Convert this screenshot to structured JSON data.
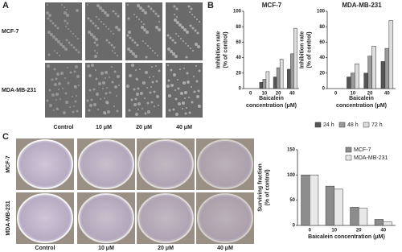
{
  "panel_labels": [
    "A",
    "B",
    "C"
  ],
  "panel_a": {
    "rows": [
      "MCF-7",
      "MDA-MB-231"
    ],
    "columns": [
      "Control",
      "10 μM",
      "20 μM",
      "40 μM"
    ]
  },
  "panel_c": {
    "rows": [
      "MCF-7",
      "MDA-MB-231"
    ],
    "columns": [
      "Control",
      "10 μM",
      "20 μM",
      "40 μM"
    ]
  },
  "chart_data": [
    {
      "type": "bar",
      "title": "MCF-7",
      "ylabel": [
        "Inhibition rate",
        "(% of control)"
      ],
      "xlabel": [
        "Baicalein",
        "concentration (μM)"
      ],
      "categories": [
        "0",
        "10",
        "20",
        "40"
      ],
      "ylim": [
        0,
        100
      ],
      "yticks": [
        0,
        20,
        40,
        60,
        80,
        100
      ],
      "series": [
        {
          "name": "24 h",
          "color": "#555555",
          "values": [
            0,
            8,
            15,
            25
          ]
        },
        {
          "name": "48 h",
          "color": "#9a9a9a",
          "values": [
            0,
            12,
            27,
            45
          ]
        },
        {
          "name": "72 h",
          "color": "#dddddd",
          "values": [
            0,
            22,
            38,
            78
          ]
        }
      ]
    },
    {
      "type": "bar",
      "title": "MDA-MB-231",
      "ylabel": [
        "Inhibition rate",
        "(% of control)"
      ],
      "xlabel": [
        "Baicalein",
        "concentration (μM)"
      ],
      "categories": [
        "0",
        "10",
        "20",
        "40"
      ],
      "ylim": [
        0,
        100
      ],
      "yticks": [
        0,
        20,
        40,
        60,
        80,
        100
      ],
      "series": [
        {
          "name": "24 h",
          "color": "#555555",
          "values": [
            0,
            15,
            20,
            35
          ]
        },
        {
          "name": "48 h",
          "color": "#9a9a9a",
          "values": [
            0,
            20,
            42,
            52
          ]
        },
        {
          "name": "72 h",
          "color": "#dddddd",
          "values": [
            0,
            32,
            55,
            88
          ]
        }
      ]
    },
    {
      "type": "bar",
      "ylabel": [
        "Surviving fraction",
        "(% of control)"
      ],
      "xlabel": [
        "Baicalein concentration (μM)"
      ],
      "categories": [
        "0",
        "10",
        "20",
        "40"
      ],
      "ylim": [
        0,
        150
      ],
      "yticks": [
        0,
        50,
        100,
        150
      ],
      "series": [
        {
          "name": "MCF-7",
          "color": "#8c8c8c",
          "values": [
            100,
            78,
            36,
            12
          ]
        },
        {
          "name": "MDA-MB-231",
          "color": "#e8e8e8",
          "values": [
            100,
            72,
            34,
            7
          ]
        }
      ]
    }
  ]
}
